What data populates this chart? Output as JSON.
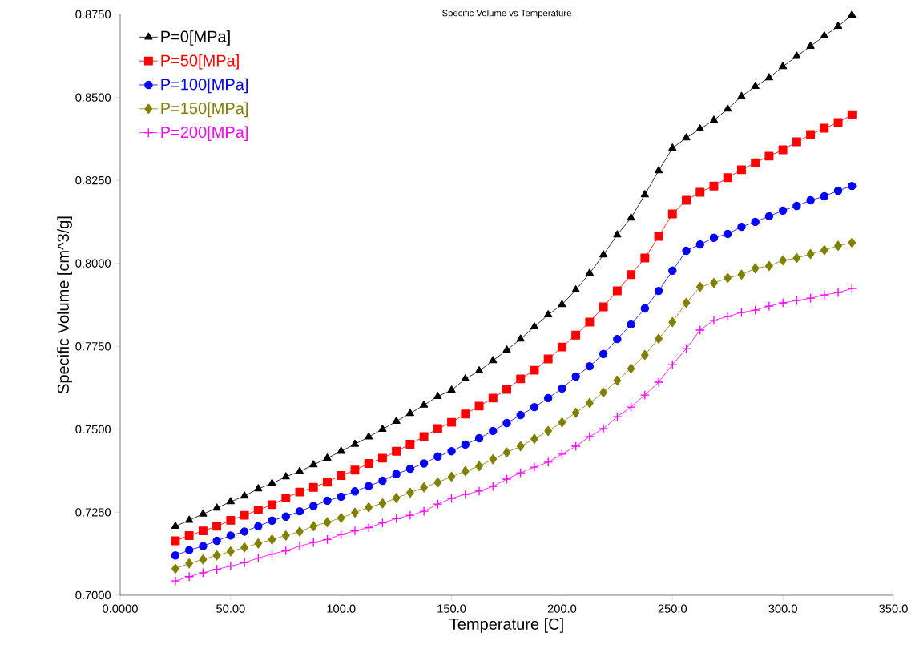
{
  "chart_data": {
    "type": "line",
    "title": "Specific Volume vs Temperature",
    "xlabel": "Temperature [C]",
    "ylabel": "Specific Volume [cm^3/g]",
    "x": [
      25,
      31.25,
      37.5,
      43.75,
      50,
      56.25,
      62.5,
      68.75,
      75,
      81.25,
      87.5,
      93.75,
      100,
      106.25,
      112.5,
      118.75,
      125,
      131.25,
      137.5,
      143.75,
      150,
      156.25,
      162.5,
      168.75,
      175,
      181.25,
      187.5,
      193.75,
      200,
      206.25,
      212.5,
      218.75,
      225,
      231.25,
      237.5,
      243.75,
      250,
      256.25,
      262.5,
      268.75,
      275,
      281.25,
      287.5,
      293.75,
      300,
      306.25,
      312.5,
      318.75,
      325,
      331.25
    ],
    "xlim": [
      0,
      350
    ],
    "ylim": [
      0.7,
      0.875
    ],
    "xticks": [
      {
        "value": 0,
        "label": "0.0000"
      },
      {
        "value": 50,
        "label": "50.00"
      },
      {
        "value": 100,
        "label": "100.0"
      },
      {
        "value": 150,
        "label": "150.0"
      },
      {
        "value": 200,
        "label": "200.0"
      },
      {
        "value": 250,
        "label": "250.0"
      },
      {
        "value": 300,
        "label": "300.0"
      },
      {
        "value": 350,
        "label": "350.0"
      }
    ],
    "yticks": [
      {
        "value": 0.7,
        "label": "0.7000"
      },
      {
        "value": 0.725,
        "label": "0.7250"
      },
      {
        "value": 0.75,
        "label": "0.7500"
      },
      {
        "value": 0.775,
        "label": "0.7750"
      },
      {
        "value": 0.8,
        "label": "0.8000"
      },
      {
        "value": 0.825,
        "label": "0.8250"
      },
      {
        "value": 0.85,
        "label": "0.8500"
      },
      {
        "value": 0.875,
        "label": "0.8750"
      }
    ],
    "grid": false,
    "legend": "top left",
    "line_style": "solid",
    "series": [
      {
        "name": "P=0[MPa]",
        "color": "#000000",
        "marker": "triangle",
        "values": [
          0.7208,
          0.7226,
          0.7245,
          0.7263,
          0.7282,
          0.7299,
          0.7321,
          0.7337,
          0.7357,
          0.7373,
          0.7393,
          0.7413,
          0.7434,
          0.7455,
          0.7477,
          0.75,
          0.7524,
          0.7548,
          0.7573,
          0.7599,
          0.7618,
          0.7652,
          0.7676,
          0.7707,
          0.7739,
          0.7772,
          0.7809,
          0.7845,
          0.7876,
          0.792,
          0.797,
          0.8026,
          0.8086,
          0.8137,
          0.8207,
          0.8279,
          0.8347,
          0.8378,
          0.8405,
          0.8431,
          0.8465,
          0.8503,
          0.8533,
          0.8559,
          0.8593,
          0.8624,
          0.8654,
          0.8685,
          0.8714,
          0.8748
        ]
      },
      {
        "name": "P=50[MPa]",
        "color": "#ff0000",
        "marker": "square",
        "values": [
          0.7164,
          0.718,
          0.7194,
          0.7208,
          0.7226,
          0.7241,
          0.7257,
          0.7273,
          0.7293,
          0.7311,
          0.7325,
          0.7341,
          0.7361,
          0.7377,
          0.7397,
          0.7413,
          0.7434,
          0.7455,
          0.7478,
          0.7502,
          0.7521,
          0.7546,
          0.757,
          0.7594,
          0.762,
          0.7652,
          0.7678,
          0.7712,
          0.7748,
          0.7784,
          0.7823,
          0.7869,
          0.7917,
          0.7966,
          0.8016,
          0.8081,
          0.8149,
          0.819,
          0.8214,
          0.8233,
          0.8258,
          0.8282,
          0.8303,
          0.8323,
          0.8342,
          0.8366,
          0.8388,
          0.8407,
          0.8424,
          0.8448
        ]
      },
      {
        "name": "P=100[MPa]",
        "color": "#0000ff",
        "marker": "circle",
        "values": [
          0.712,
          0.7136,
          0.7148,
          0.7164,
          0.718,
          0.7192,
          0.7208,
          0.7225,
          0.7237,
          0.7253,
          0.7269,
          0.7285,
          0.7297,
          0.7313,
          0.7329,
          0.7345,
          0.7365,
          0.7381,
          0.7397,
          0.7418,
          0.7434,
          0.7454,
          0.7473,
          0.7495,
          0.7519,
          0.7543,
          0.7567,
          0.7594,
          0.7623,
          0.7659,
          0.769,
          0.7727,
          0.7772,
          0.7816,
          0.7864,
          0.7917,
          0.7978,
          0.8038,
          0.8057,
          0.8077,
          0.8089,
          0.811,
          0.8125,
          0.8142,
          0.8159,
          0.8173,
          0.819,
          0.8202,
          0.8219,
          0.8233
        ]
      },
      {
        "name": "P=150[MPa]",
        "color": "#808000",
        "marker": "diamond",
        "values": [
          0.708,
          0.7096,
          0.7108,
          0.712,
          0.7132,
          0.7144,
          0.7156,
          0.7168,
          0.718,
          0.7192,
          0.7208,
          0.722,
          0.7233,
          0.7249,
          0.7265,
          0.7277,
          0.7293,
          0.7309,
          0.7325,
          0.734,
          0.7357,
          0.7374,
          0.7389,
          0.741,
          0.743,
          0.7449,
          0.7471,
          0.7495,
          0.7521,
          0.755,
          0.7579,
          0.7611,
          0.7647,
          0.7683,
          0.7724,
          0.7773,
          0.7823,
          0.7881,
          0.7929,
          0.7941,
          0.7956,
          0.7966,
          0.7985,
          0.7992,
          0.8009,
          0.8016,
          0.8028,
          0.804,
          0.8053,
          0.8062
        ]
      },
      {
        "name": "P=200[MPa]",
        "color": "#ff00ff",
        "marker": "cross",
        "values": [
          0.7043,
          0.7056,
          0.7068,
          0.7078,
          0.7088,
          0.7098,
          0.7112,
          0.7124,
          0.7134,
          0.7148,
          0.7159,
          0.7168,
          0.7183,
          0.7194,
          0.7204,
          0.7218,
          0.7231,
          0.7241,
          0.7253,
          0.7275,
          0.7292,
          0.7304,
          0.7314,
          0.7328,
          0.735,
          0.7369,
          0.7386,
          0.7401,
          0.7425,
          0.7449,
          0.7478,
          0.7502,
          0.7538,
          0.7567,
          0.7603,
          0.7642,
          0.7695,
          0.7743,
          0.7799,
          0.7828,
          0.784,
          0.7852,
          0.7859,
          0.7871,
          0.7881,
          0.7888,
          0.7895,
          0.7905,
          0.7912,
          0.7924
        ]
      }
    ]
  }
}
